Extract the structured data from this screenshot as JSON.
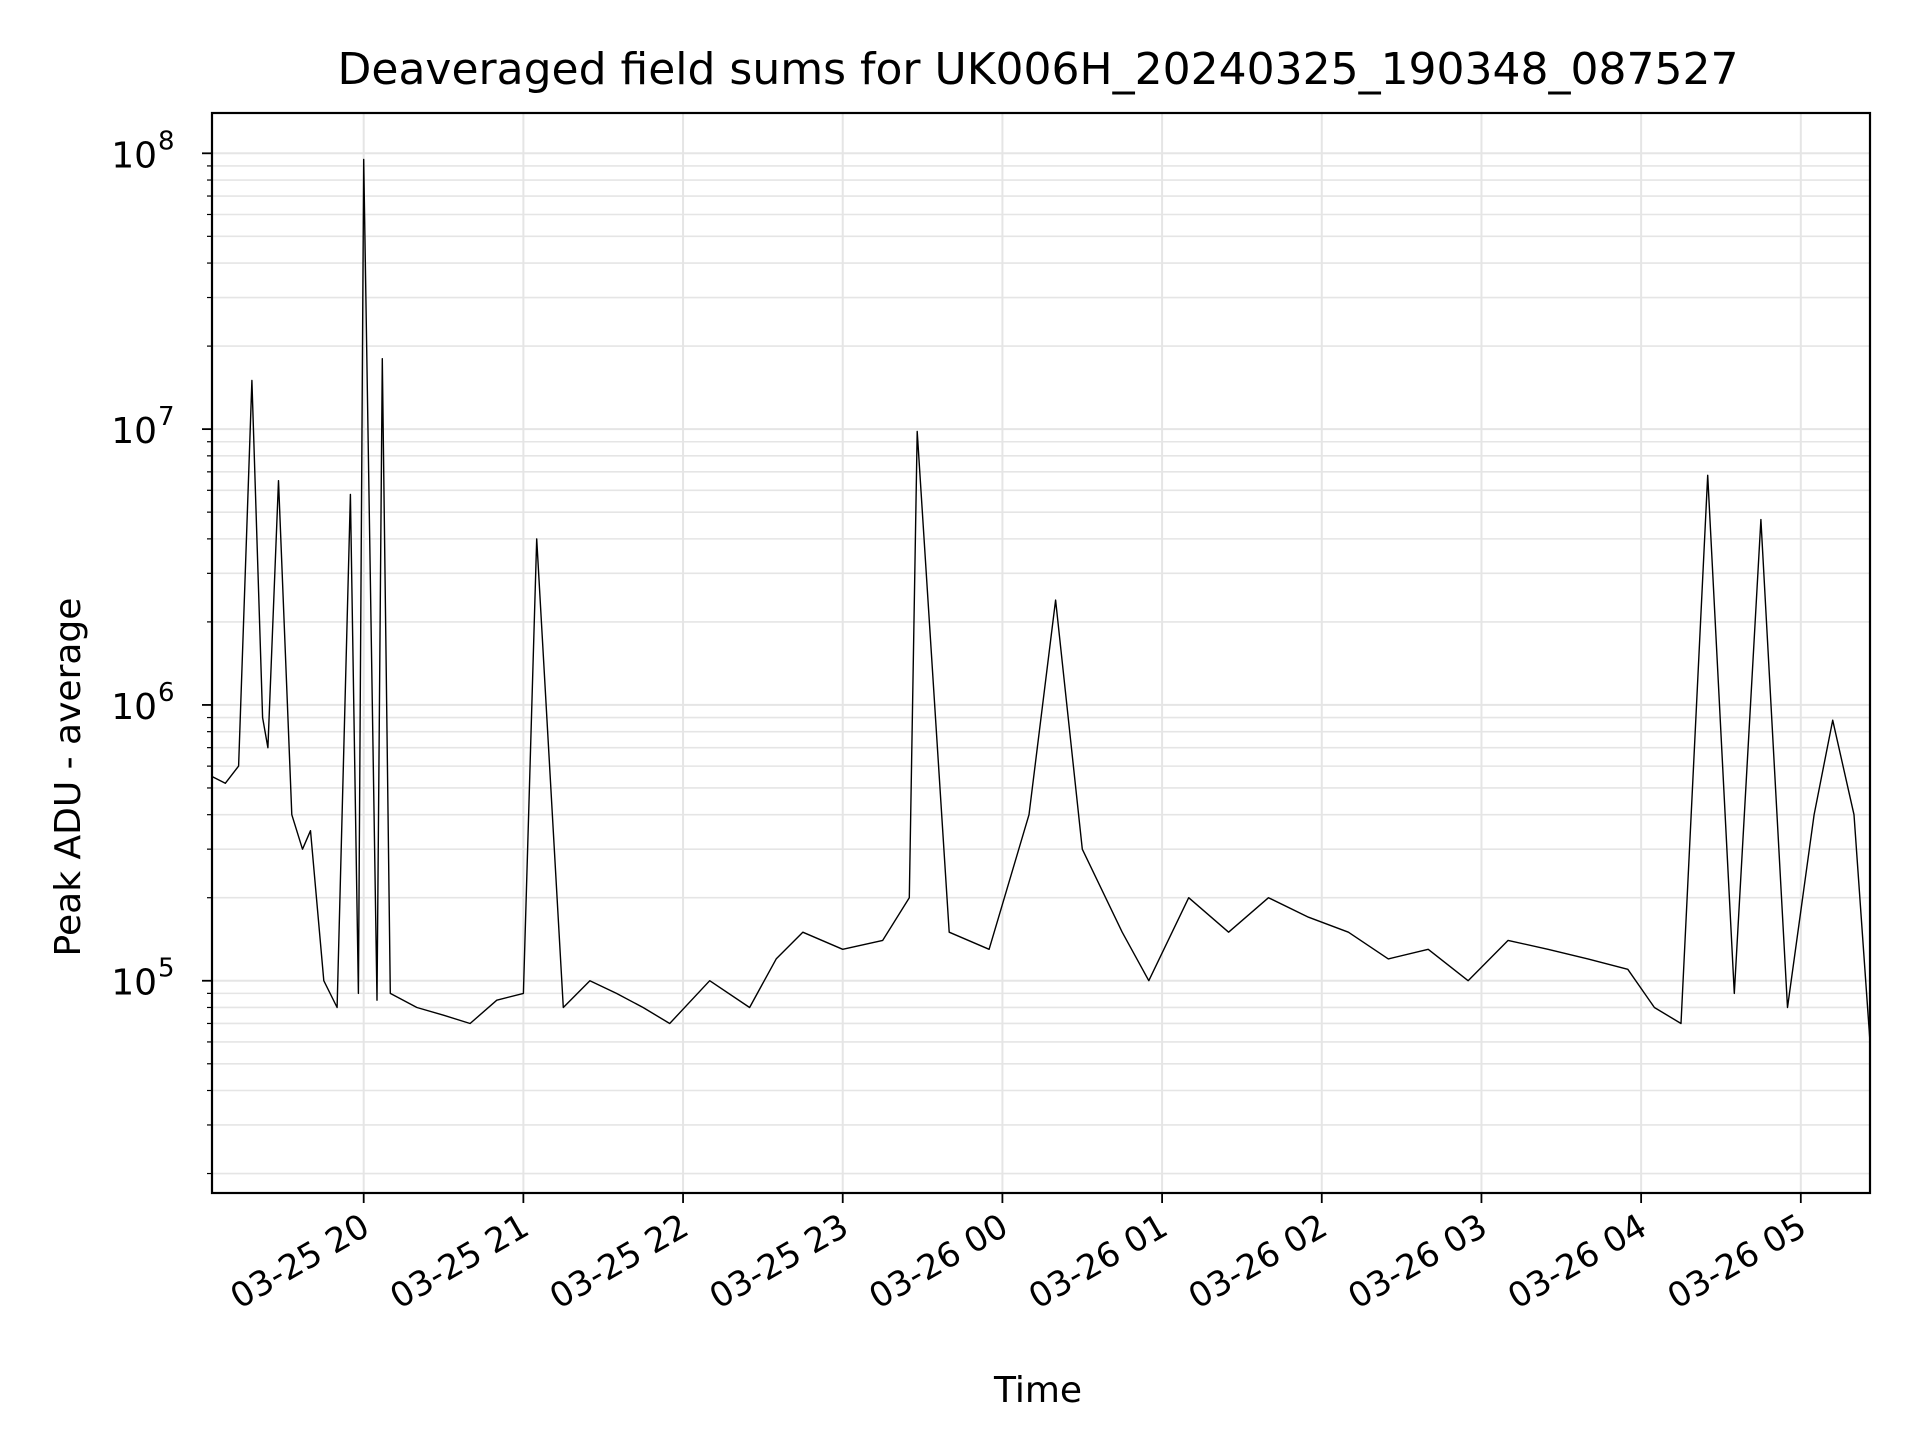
{
  "chart_data": {
    "type": "line",
    "title": "Deaveraged field sums for UK006H_20240325_190348_087527",
    "xlabel": "Time",
    "ylabel": "Peak ADU - average",
    "yscale": "log",
    "ylim": [
      17000,
      140000000
    ],
    "xlim": [
      "2024-03-25 19:03",
      "2024-03-26 05:26"
    ],
    "grid": true,
    "line_color": "#000000",
    "grid_color": "#e5e5e5",
    "x_ticks": [
      {
        "value": "2024-03-25 20:00",
        "label": "03-25 20"
      },
      {
        "value": "2024-03-25 21:00",
        "label": "03-25 21"
      },
      {
        "value": "2024-03-25 22:00",
        "label": "03-25 22"
      },
      {
        "value": "2024-03-25 23:00",
        "label": "03-25 23"
      },
      {
        "value": "2024-03-26 00:00",
        "label": "03-26 00"
      },
      {
        "value": "2024-03-26 01:00",
        "label": "03-26 01"
      },
      {
        "value": "2024-03-26 02:00",
        "label": "03-26 02"
      },
      {
        "value": "2024-03-26 03:00",
        "label": "03-26 03"
      },
      {
        "value": "2024-03-26 04:00",
        "label": "03-26 04"
      },
      {
        "value": "2024-03-26 05:00",
        "label": "03-26 05"
      }
    ],
    "y_ticks": [
      {
        "value": 100000,
        "base": "10",
        "exp": "5"
      },
      {
        "value": 1000000,
        "base": "10",
        "exp": "6"
      },
      {
        "value": 10000000,
        "base": "10",
        "exp": "7"
      },
      {
        "value": 100000000,
        "base": "10",
        "exp": "8"
      }
    ],
    "series": [
      {
        "x": [
          "2024-03-25 19:03",
          "2024-03-25 19:08",
          "2024-03-25 19:13",
          "2024-03-25 19:18",
          "2024-03-25 19:22",
          "2024-03-25 19:24",
          "2024-03-25 19:28",
          "2024-03-25 19:33",
          "2024-03-25 19:37",
          "2024-03-25 19:40",
          "2024-03-25 19:45",
          "2024-03-25 19:50",
          "2024-03-25 19:55",
          "2024-03-25 19:58",
          "2024-03-25 20:00",
          "2024-03-25 20:05",
          "2024-03-25 20:07",
          "2024-03-25 20:10",
          "2024-03-25 20:20",
          "2024-03-25 20:30",
          "2024-03-25 20:40",
          "2024-03-25 20:50",
          "2024-03-25 21:00",
          "2024-03-25 21:05",
          "2024-03-25 21:15",
          "2024-03-25 21:25",
          "2024-03-25 21:35",
          "2024-03-25 21:45",
          "2024-03-25 21:55",
          "2024-03-25 22:10",
          "2024-03-25 22:25",
          "2024-03-25 22:35",
          "2024-03-25 22:45",
          "2024-03-25 23:00",
          "2024-03-25 23:15",
          "2024-03-25 23:25",
          "2024-03-25 23:28",
          "2024-03-25 23:40",
          "2024-03-25 23:55",
          "2024-03-26 00:10",
          "2024-03-26 00:20",
          "2024-03-26 00:30",
          "2024-03-26 00:45",
          "2024-03-26 00:55",
          "2024-03-26 01:10",
          "2024-03-26 01:25",
          "2024-03-26 01:40",
          "2024-03-26 01:55",
          "2024-03-26 02:10",
          "2024-03-26 02:25",
          "2024-03-26 02:40",
          "2024-03-26 02:55",
          "2024-03-26 03:10",
          "2024-03-26 03:25",
          "2024-03-26 03:40",
          "2024-03-26 03:55",
          "2024-03-26 04:05",
          "2024-03-26 04:15",
          "2024-03-26 04:25",
          "2024-03-26 04:35",
          "2024-03-26 04:45",
          "2024-03-26 04:55",
          "2024-03-26 05:05",
          "2024-03-26 05:12",
          "2024-03-26 05:20",
          "2024-03-26 05:26"
        ],
        "y": [
          550000,
          520000,
          600000,
          15000000,
          900000,
          700000,
          6500000,
          400000,
          300000,
          350000,
          100000,
          80000,
          5800000,
          90000,
          95000000,
          85000,
          18000000,
          90000,
          80000,
          75000,
          70000,
          85000,
          90000,
          4000000,
          80000,
          100000,
          90000,
          80000,
          70000,
          100000,
          80000,
          120000,
          150000,
          130000,
          140000,
          200000,
          9800000,
          150000,
          130000,
          400000,
          2400000,
          300000,
          150000,
          100000,
          200000,
          150000,
          200000,
          170000,
          150000,
          120000,
          130000,
          100000,
          140000,
          130000,
          120000,
          110000,
          80000,
          70000,
          6800000,
          90000,
          4700000,
          80000,
          400000,
          880000,
          400000,
          60000
        ]
      }
    ]
  }
}
